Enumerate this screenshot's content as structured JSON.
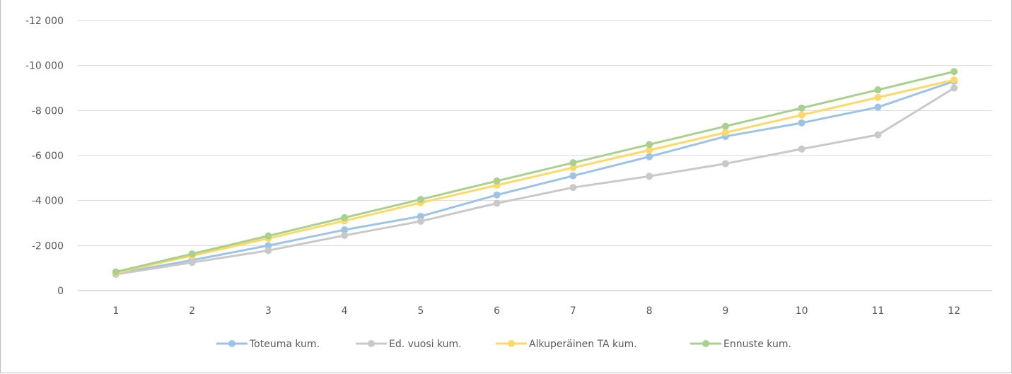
{
  "chart_data": {
    "type": "line",
    "title": "",
    "xlabel": "",
    "ylabel": "",
    "x": [
      1,
      2,
      3,
      4,
      5,
      6,
      7,
      8,
      9,
      10,
      11,
      12
    ],
    "y_ticks": [
      0,
      -2000,
      -4000,
      -6000,
      -8000,
      -10000,
      -12000
    ],
    "y_tick_labels": [
      "0",
      "-2 000",
      "-4 000",
      "-6 000",
      "-8 000",
      "-10 000",
      "-12 000"
    ],
    "ylim": [
      0,
      -12000
    ],
    "y_axis_reversed": true,
    "grid": "horizontal",
    "legend_position": "bottom",
    "series": [
      {
        "name": "Toteuma kum.",
        "color": "#9dc3e6",
        "values": [
          -750,
          -1350,
          -2000,
          -2700,
          -3300,
          -4250,
          -5100,
          -5950,
          -6850,
          -7450,
          -8150,
          -9300
        ]
      },
      {
        "name": "Ed. vuosi kum.",
        "color": "#c9c9c9",
        "values": [
          -720,
          -1250,
          -1780,
          -2450,
          -3080,
          -3880,
          -4580,
          -5080,
          -5640,
          -6290,
          -6920,
          -9000
        ]
      },
      {
        "name": "Alkuperäinen TA kum.",
        "color": "#ffd966",
        "values": [
          -790,
          -1550,
          -2320,
          -3100,
          -3900,
          -4680,
          -5460,
          -6240,
          -7020,
          -7800,
          -8580,
          -9360
        ]
      },
      {
        "name": "Ennuste kum.",
        "color": "#a9d18e",
        "values": [
          -830,
          -1630,
          -2430,
          -3240,
          -4050,
          -4870,
          -5680,
          -6490,
          -7300,
          -8110,
          -8920,
          -9730
        ]
      }
    ]
  }
}
